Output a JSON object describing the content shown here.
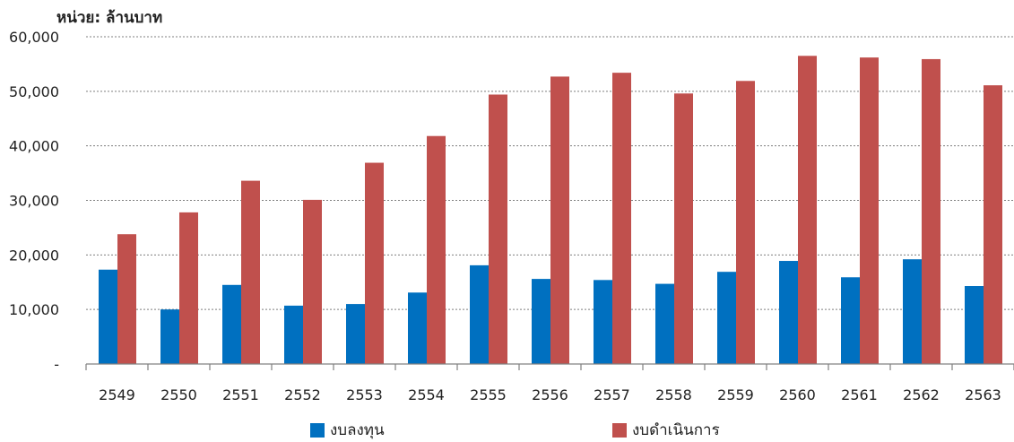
{
  "chart_data": {
    "type": "bar",
    "unit_label": "หน่วย: ล้านบาท",
    "categories": [
      "2549",
      "2550",
      "2551",
      "2552",
      "2553",
      "2554",
      "2555",
      "2556",
      "2557",
      "2558",
      "2559",
      "2560",
      "2561",
      "2562",
      "2563"
    ],
    "series": [
      {
        "name": "งบลงทุน",
        "color": "#0070c0",
        "values": [
          17300,
          10000,
          14500,
          10700,
          11000,
          13100,
          18100,
          15600,
          15400,
          14700,
          16900,
          18900,
          15900,
          19200,
          14300
        ]
      },
      {
        "name": "งบดำเนินการ",
        "color": "#c0504d",
        "values": [
          23800,
          27800,
          33600,
          30100,
          36900,
          41800,
          49400,
          52700,
          53400,
          49600,
          51900,
          56500,
          56200,
          55900,
          51100
        ]
      }
    ],
    "ylim": [
      0,
      60000
    ],
    "yticks": [
      0,
      10000,
      20000,
      30000,
      40000,
      50000,
      60000
    ],
    "ytick_labels": [
      "-",
      "10,000",
      "20,000",
      "30,000",
      "40,000",
      "50,000",
      "60,000"
    ],
    "grid": true,
    "legend_position": "bottom"
  }
}
